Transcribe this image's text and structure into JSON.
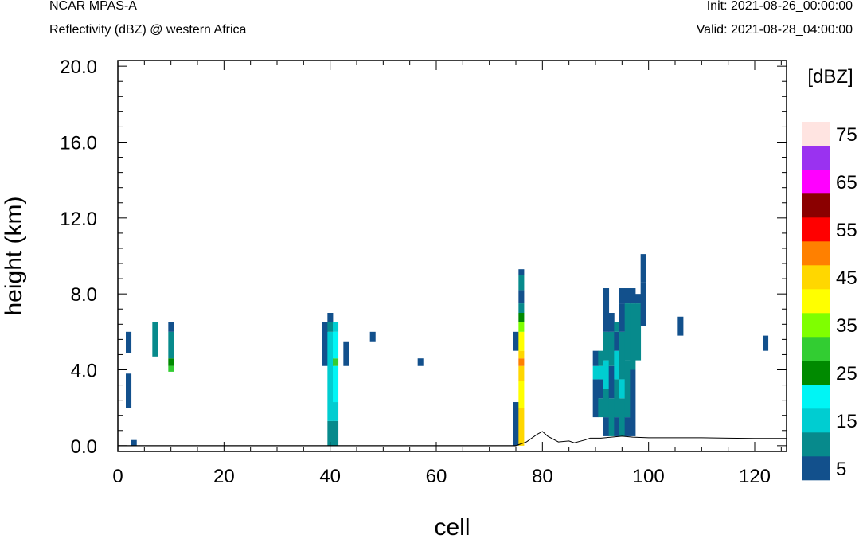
{
  "header": {
    "model": "NCAR MPAS-A",
    "field": "Reflectivity (dBZ) @ western Africa",
    "init": "Init: 2021-08-26_00:00:00",
    "valid": "Valid: 2021-08-28_04:00:00"
  },
  "colors": {
    "5": "#12508c",
    "10": "#078a8c",
    "15": "#00cdd1",
    "20": "#00f5f5",
    "25": "#008a00",
    "30": "#32cd32",
    "35": "#7fff00",
    "40": "#ffff00",
    "45": "#ffd700",
    "50": "#ff8000",
    "55": "#ff0000",
    "60": "#8b0000",
    "65": "#ff00ff",
    "70": "#9a32f0",
    "75": "#ffe4e1"
  },
  "chart_data": {
    "type": "heatmap",
    "xlabel": "cell",
    "ylabel": "height (km)",
    "xlim": [
      0,
      126
    ],
    "ylim": [
      -0.3,
      20.3
    ],
    "x_ticks": [
      "0",
      "20",
      "40",
      "60",
      "80",
      "100",
      "120"
    ],
    "y_ticks": [
      "0.0",
      "4.0",
      "8.0",
      "12.0",
      "16.0",
      "20.0"
    ],
    "colorbar": {
      "title": "[dBZ]",
      "levels": [
        5,
        10,
        15,
        20,
        25,
        30,
        35,
        40,
        45,
        50,
        55,
        60,
        65,
        70,
        75
      ],
      "labels": [
        "5",
        "15",
        "25",
        "35",
        "45",
        "55",
        "65",
        "75"
      ]
    },
    "columns": [
      {
        "x": 2,
        "segments": [
          [
            2.0,
            3.8,
            5
          ],
          [
            4.9,
            6.0,
            5
          ]
        ]
      },
      {
        "x": 3,
        "segments": [
          [
            0.0,
            0.3,
            5
          ]
        ]
      },
      {
        "x": 7,
        "segments": [
          [
            4.7,
            6.5,
            10
          ]
        ]
      },
      {
        "x": 10,
        "segments": [
          [
            3.9,
            4.2,
            30
          ],
          [
            4.2,
            4.6,
            25
          ],
          [
            4.6,
            6.0,
            10
          ],
          [
            6.0,
            6.5,
            5
          ]
        ]
      },
      {
        "x": 39,
        "segments": [
          [
            4.2,
            6.5,
            5
          ]
        ]
      },
      {
        "x": 40,
        "segments": [
          [
            0.0,
            1.3,
            10
          ],
          [
            1.3,
            6.0,
            15
          ],
          [
            6.0,
            6.5,
            10
          ],
          [
            6.5,
            7.0,
            5
          ]
        ]
      },
      {
        "x": 41,
        "segments": [
          [
            0.0,
            1.3,
            10
          ],
          [
            1.3,
            2.3,
            15
          ],
          [
            2.3,
            4.2,
            20
          ],
          [
            4.2,
            4.6,
            30
          ],
          [
            4.6,
            6.0,
            20
          ],
          [
            6.0,
            6.5,
            15
          ]
        ]
      },
      {
        "x": 43,
        "segments": [
          [
            4.2,
            5.5,
            5
          ]
        ]
      },
      {
        "x": 48,
        "segments": [
          [
            5.5,
            6.0,
            5
          ]
        ]
      },
      {
        "x": 57,
        "segments": [
          [
            4.2,
            4.6,
            5
          ]
        ]
      },
      {
        "x": 75,
        "segments": [
          [
            0.0,
            2.3,
            5
          ],
          [
            5.0,
            6.0,
            5
          ]
        ]
      },
      {
        "x": 76,
        "segments": [
          [
            0.0,
            2.0,
            45
          ],
          [
            2.0,
            3.4,
            40
          ],
          [
            3.4,
            4.2,
            45
          ],
          [
            4.2,
            4.6,
            50
          ],
          [
            4.6,
            5.0,
            45
          ],
          [
            5.0,
            6.0,
            40
          ],
          [
            6.0,
            6.5,
            35
          ],
          [
            6.5,
            7.0,
            25
          ],
          [
            7.0,
            7.5,
            10
          ],
          [
            7.5,
            8.2,
            5
          ],
          [
            8.2,
            9.0,
            10
          ],
          [
            9.0,
            9.3,
            5
          ]
        ]
      },
      {
        "x": 90,
        "segments": [
          [
            1.5,
            3.5,
            5
          ],
          [
            3.5,
            4.2,
            15
          ],
          [
            4.2,
            5.0,
            5
          ]
        ]
      },
      {
        "x": 91,
        "segments": [
          [
            1.5,
            2.5,
            10
          ],
          [
            2.5,
            3.5,
            5
          ],
          [
            3.5,
            4.2,
            15
          ],
          [
            4.2,
            5.0,
            10
          ]
        ]
      },
      {
        "x": 92,
        "segments": [
          [
            0.5,
            1.5,
            5
          ],
          [
            1.5,
            3.0,
            10
          ],
          [
            3.0,
            4.5,
            15
          ],
          [
            4.5,
            6.0,
            10
          ],
          [
            6.0,
            8.3,
            5
          ]
        ]
      },
      {
        "x": 93,
        "segments": [
          [
            0.5,
            2.5,
            10
          ],
          [
            2.5,
            4.2,
            5
          ],
          [
            4.2,
            6.0,
            10
          ],
          [
            6.0,
            7.0,
            5
          ]
        ]
      },
      {
        "x": 94,
        "segments": [
          [
            0.5,
            1.5,
            5
          ],
          [
            1.5,
            3.5,
            10
          ],
          [
            3.5,
            5.0,
            15
          ],
          [
            5.0,
            6.0,
            5
          ],
          [
            6.0,
            6.5,
            10
          ]
        ]
      },
      {
        "x": 95,
        "segments": [
          [
            0.5,
            2.5,
            10
          ],
          [
            2.5,
            3.5,
            15
          ],
          [
            3.5,
            6.0,
            10
          ],
          [
            6.0,
            7.5,
            5
          ],
          [
            7.5,
            8.3,
            5
          ]
        ]
      },
      {
        "x": 96,
        "segments": [
          [
            0.5,
            1.5,
            5
          ],
          [
            1.5,
            4.5,
            10
          ],
          [
            4.5,
            7.5,
            10
          ],
          [
            7.5,
            8.3,
            5
          ]
        ]
      },
      {
        "x": 97,
        "segments": [
          [
            0.5,
            4.0,
            5
          ],
          [
            4.0,
            7.5,
            10
          ],
          [
            7.5,
            8.3,
            5
          ]
        ]
      },
      {
        "x": 98,
        "segments": [
          [
            4.5,
            7.5,
            10
          ],
          [
            7.5,
            8.0,
            5
          ]
        ]
      },
      {
        "x": 99,
        "segments": [
          [
            6.3,
            8.6,
            5
          ],
          [
            8.6,
            10.1,
            5
          ]
        ]
      },
      {
        "x": 106,
        "segments": [
          [
            5.8,
            6.8,
            5
          ]
        ]
      },
      {
        "x": 122,
        "segments": [
          [
            5.0,
            5.8,
            5
          ]
        ]
      }
    ],
    "terrain": {
      "x": [
        75,
        77,
        79,
        80,
        81,
        83,
        85,
        86,
        88,
        89,
        91,
        93,
        95,
        97,
        100,
        105,
        110,
        115,
        120,
        126
      ],
      "y": [
        0.0,
        0.2,
        0.6,
        0.75,
        0.5,
        0.2,
        0.25,
        0.15,
        0.3,
        0.4,
        0.4,
        0.45,
        0.5,
        0.45,
        0.42,
        0.42,
        0.42,
        0.4,
        0.38,
        0.38
      ]
    }
  }
}
